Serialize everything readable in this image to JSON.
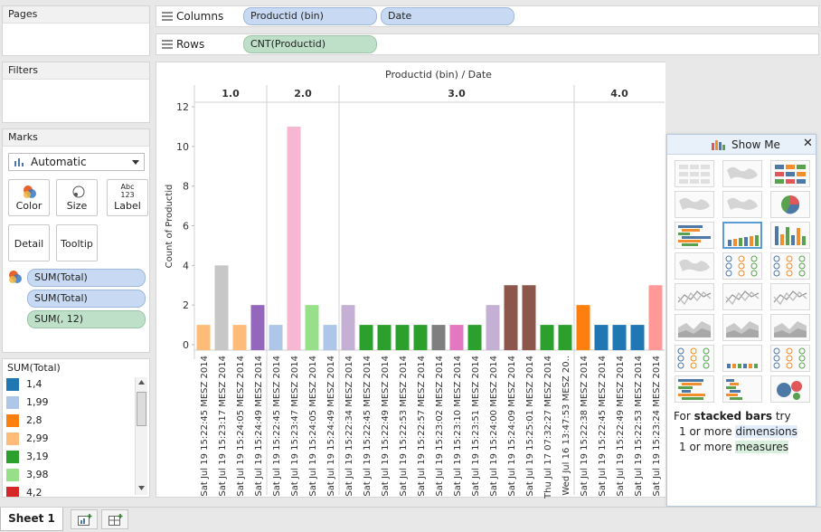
{
  "panels": {
    "pages_title": "Pages",
    "filters_title": "Filters",
    "marks_title": "Marks",
    "mark_type": "Automatic",
    "buttons": {
      "color": "Color",
      "size": "Size",
      "label": "Label",
      "detail": "Detail",
      "tooltip": "Tooltip",
      "label_icon": "Abc\n123"
    },
    "mark_fields": [
      "SUM(Total)",
      "SUM(Total)",
      "SUM(, 12)"
    ]
  },
  "legend": {
    "title": "SUM(Total)",
    "items": [
      {
        "label": "1,4",
        "color": "#1f77b4"
      },
      {
        "label": "1,99",
        "color": "#aec7e8"
      },
      {
        "label": "2,8",
        "color": "#ff7f0e"
      },
      {
        "label": "2,99",
        "color": "#ffbb78"
      },
      {
        "label": "3,19",
        "color": "#2ca02c"
      },
      {
        "label": "3,98",
        "color": "#98df8a"
      },
      {
        "label": "4,2",
        "color": "#d62728"
      }
    ]
  },
  "shelves": {
    "columns_label": "Columns",
    "rows_label": "Rows",
    "columns_pills": [
      "Productid (bin)",
      "Date"
    ],
    "rows_pills": [
      "CNT(Productid)"
    ]
  },
  "chart_data": {
    "type": "bar",
    "title": "Productid (bin)  /  Date",
    "ylabel": "Count of Productid",
    "ylim": [
      0,
      12
    ],
    "yticks": [
      0,
      2,
      4,
      6,
      8,
      10,
      12
    ],
    "groups": [
      {
        "label": "1.0",
        "bars": [
          {
            "x": "Sat Jul 19 15:22:45 MESZ 2014",
            "y": 1,
            "color": "#ffbb78"
          },
          {
            "x": "Sat Jul 19 15:23:17 MESZ 2014",
            "y": 4,
            "color": "#c7c7c7"
          },
          {
            "x": "Sat Jul 19 15:24:05 MESZ 2014",
            "y": 1,
            "color": "#ffbb78"
          },
          {
            "x": "Sat Jul 19 15:24:49 MESZ 2014",
            "y": 2,
            "color": "#9467bd"
          }
        ]
      },
      {
        "label": "2.0",
        "bars": [
          {
            "x": "Sat Jul 19 15:22:45 MESZ 2014",
            "y": 1,
            "color": "#aec7e8"
          },
          {
            "x": "Sat Jul 19 15:23:47 MESZ 2014",
            "y": 11,
            "color": "#f7b6d2"
          },
          {
            "x": "Sat Jul 19 15:24:05 MESZ 2014",
            "y": 2,
            "color": "#98df8a"
          },
          {
            "x": "Sat Jul 19 15:24:49 MESZ 2014",
            "y": 1,
            "color": "#aec7e8"
          }
        ]
      },
      {
        "label": "3.0",
        "bars": [
          {
            "x": "Sat Jul 19 15:22:34 MESZ 2014",
            "y": 2,
            "color": "#c5b0d5"
          },
          {
            "x": "Sat Jul 19 15:22:45 MESZ 2014",
            "y": 1,
            "color": "#2ca02c"
          },
          {
            "x": "Sat Jul 19 15:22:49 MESZ 2014",
            "y": 1,
            "color": "#2ca02c"
          },
          {
            "x": "Sat Jul 19 15:22:53 MESZ 2014",
            "y": 1,
            "color": "#2ca02c"
          },
          {
            "x": "Sat Jul 19 15:22:57 MESZ 2014",
            "y": 1,
            "color": "#2ca02c"
          },
          {
            "x": "Sat Jul 19 15:23:02 MESZ 2014",
            "y": 1,
            "color": "#7f7f7f"
          },
          {
            "x": "Sat Jul 19 15:23:10 MESZ 2014",
            "y": 1,
            "color": "#e377c2"
          },
          {
            "x": "Sat Jul 19 15:23:51 MESZ 2014",
            "y": 1,
            "color": "#2ca02c"
          },
          {
            "x": "Sat Jul 19 15:24:00 MESZ 2014",
            "y": 2,
            "color": "#c5b0d5"
          },
          {
            "x": "Sat Jul 19 15:24:09 MESZ 2014",
            "y": 3,
            "color": "#8c564b"
          },
          {
            "x": "Sat Jul 19 15:25:01 MESZ 2014",
            "y": 3,
            "color": "#8c564b"
          },
          {
            "x": "Thu Jul 17 07:32:27 MESZ 2014",
            "y": 1,
            "color": "#2ca02c"
          },
          {
            "x": "Wed Jul 16 13:47:53 MESZ 20..",
            "y": 1,
            "color": "#2ca02c"
          }
        ]
      },
      {
        "label": "4.0",
        "bars": [
          {
            "x": "Sat Jul 19 15:22:38 MESZ 2014",
            "y": 2,
            "color": "#ff7f0e"
          },
          {
            "x": "Sat Jul 19 15:22:45 MESZ 2014",
            "y": 1,
            "color": "#1f77b4"
          },
          {
            "x": "Sat Jul 19 15:22:49 MESZ 2014",
            "y": 1,
            "color": "#1f77b4"
          },
          {
            "x": "Sat Jul 19 15:22:53 MESZ 2014",
            "y": 1,
            "color": "#1f77b4"
          },
          {
            "x": "Sat Jul 19 15:23:24 MESZ 2014",
            "y": 3,
            "color": "#ff9896"
          }
        ]
      }
    ]
  },
  "showme": {
    "title": "Show Me",
    "hint_for": "For",
    "hint_bold": "stacked bars",
    "hint_try": "try",
    "line1_pre": "1 or more",
    "line1_hl": "dimensions",
    "line2_pre": "1 or more",
    "line2_hl": "measures",
    "chart_types": [
      "text-table",
      "heat-map",
      "highlight-table",
      "symbol-map",
      "filled-map",
      "pie-chart",
      "horizontal-bars",
      "stacked-bars",
      "side-by-side-bars",
      "treemap",
      "circle-views",
      "side-by-side-circles",
      "lines-continuous",
      "lines-discrete",
      "dual-lines",
      "area-continuous",
      "area-discrete",
      "dual-combination",
      "scatter-plot",
      "histogram",
      "box-and-whisker",
      "gantt",
      "bullet-graph",
      "packed-bubbles"
    ]
  },
  "tabs": {
    "sheet": "Sheet 1"
  }
}
